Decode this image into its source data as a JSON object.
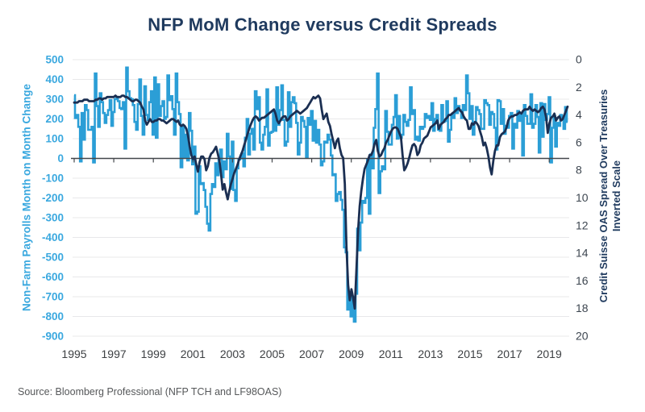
{
  "chart": {
    "title": "NFP MoM Change versus Credit Spreads",
    "source": "Source: Bloomberg Professional (NFP TCH and LF98OAS)"
  },
  "chart_data": {
    "type": "line",
    "title": "NFP MoM Change versus Credit Spreads",
    "source": "Source: Bloomberg Professional (NFP TCH and LF98OAS)",
    "grid": true,
    "legend": false,
    "x": {
      "start_year": 1995,
      "frequency": "monthly",
      "end_year": 2019,
      "tick_years": [
        1995,
        1997,
        1999,
        2001,
        2003,
        2005,
        2007,
        2009,
        2011,
        2013,
        2015,
        2017,
        2019
      ]
    },
    "left_axis": {
      "label": "Non-Farm Payrolls Month on Month Change",
      "ticks": [
        500,
        400,
        300,
        200,
        100,
        0,
        -100,
        -200,
        -300,
        -400,
        -500,
        -600,
        -700,
        -800,
        -900
      ],
      "range": [
        -900,
        500
      ],
      "color": "#3aa8df"
    },
    "right_axis": {
      "label_line1": "Credit Suisse OAS Spread Over Treasuries",
      "label_line2": "Inverted Scale",
      "ticks": [
        0,
        2,
        4,
        6,
        8,
        10,
        12,
        14,
        16,
        18,
        20
      ],
      "range": [
        0,
        20
      ],
      "inverted": true,
      "color": "#1f3a5e",
      "tick_color": "#3d4650"
    },
    "series": [
      {
        "name": "Non-Farm Payrolls Month on Month Change",
        "axis": "left",
        "color": "#2b9ed6",
        "style": "step",
        "values": [
          320,
          205,
          220,
          160,
          -15,
          230,
          95,
          270,
          245,
          145,
          145,
          160,
          -20,
          430,
          265,
          160,
          330,
          285,
          230,
          180,
          220,
          245,
          295,
          165,
          235,
          300,
          310,
          290,
          255,
          250,
          285,
          50,
          460,
          340,
          305,
          300,
          270,
          185,
          145,
          275,
          400,
          215,
          120,
          365,
          220,
          195,
          285,
          340,
          120,
          410,
          105,
          375,
          215,
          265,
          290,
          200,
          210,
          420,
          295,
          315,
          250,
          120,
          430,
          285,
          225,
          -45,
          165,
          5,
          120,
          -10,
          230,
          140,
          -30,
          60,
          -280,
          -270,
          -40,
          -130,
          -125,
          -160,
          -245,
          -330,
          -365,
          -180,
          -130,
          -145,
          -25,
          -85,
          -5,
          45,
          -95,
          -15,
          -55,
          125,
          10,
          -155,
          85,
          -160,
          -215,
          -50,
          -5,
          0,
          25,
          -40,
          105,
          200,
          20,
          125,
          150,
          45,
          340,
          250,
          310,
          80,
          45,
          120,
          160,
          350,
          65,
          130,
          135,
          240,
          140,
          360,
          170,
          245,
          370,
          195,
          65,
          85,
          335,
          160,
          285,
          310,
          280,
          180,
          20,
          80,
          210,
          190,
          160,
          5,
          205,
          170,
          240,
          90,
          190,
          80,
          145,
          70,
          -35,
          -15,
          85,
          80,
          120,
          95,
          15,
          -85,
          -80,
          -215,
          -180,
          -170,
          -210,
          -260,
          -450,
          -475,
          -765,
          -695,
          -800,
          -700,
          -826,
          -685,
          -355,
          -465,
          -325,
          -215,
          -225,
          -200,
          -5,
          -280,
          20,
          -50,
          155,
          250,
          430,
          -175,
          -65,
          -40,
          -55,
          240,
          135,
          70,
          70,
          170,
          210,
          320,
          100,
          215,
          105,
          120,
          220,
          185,
          165,
          195,
          360,
          225,
          245,
          95,
          110,
          90,
          160,
          150,
          160,
          225,
          205,
          215,
          195,
          280,
          140,
          200,
          220,
          145,
          140,
          270,
          185,
          190,
          290,
          85,
          145,
          220,
          205,
          305,
          230,
          265,
          245,
          205,
          270,
          245,
          420,
          330,
          200,
          265,
          120,
          185,
          260,
          245,
          225,
          150,
          150,
          295,
          280,
          270,
          170,
          235,
          225,
          155,
          45,
          295,
          290,
          175,
          250,
          125,
          165,
          155,
          215,
          230,
          50,
          175,
          155,
          240,
          190,
          220,
          15,
          270,
          215,
          175,
          175,
          325,
          155,
          175,
          270,
          210,
          30,
          280,
          110,
          275,
          195,
          225,
          310,
          -20,
          155,
          215,
          60,
          180,
          165,
          220,
          195,
          150,
          260,
          185
        ]
      },
      {
        "name": "Credit Suisse OAS Spread Over Treasuries (Inverted Scale)",
        "axis": "right",
        "color": "#1b2f52",
        "style": "line",
        "values": [
          3.1,
          3.1,
          3.1,
          3.0,
          3.0,
          3.0,
          2.9,
          2.9,
          2.9,
          3.0,
          3.0,
          3.0,
          3.0,
          2.9,
          2.9,
          2.8,
          2.8,
          2.9,
          2.8,
          2.8,
          2.7,
          2.7,
          2.7,
          2.7,
          2.7,
          2.6,
          2.7,
          2.7,
          2.7,
          2.6,
          2.6,
          2.7,
          2.7,
          2.8,
          2.9,
          3.0,
          3.0,
          2.9,
          2.9,
          3.0,
          3.1,
          3.4,
          3.6,
          4.4,
          4.7,
          4.5,
          4.3,
          4.5,
          4.5,
          4.4,
          4.4,
          4.3,
          4.3,
          4.4,
          4.4,
          4.5,
          4.6,
          4.5,
          4.4,
          4.3,
          4.3,
          4.4,
          4.5,
          4.4,
          4.7,
          4.8,
          4.7,
          4.8,
          5.0,
          5.5,
          6.3,
          6.9,
          7.2,
          7.0,
          7.6,
          8.1,
          7.4,
          7.0,
          7.0,
          7.2,
          8.0,
          7.7,
          7.1,
          6.8,
          6.7,
          6.5,
          6.3,
          6.8,
          7.3,
          8.3,
          9.4,
          9.0,
          9.6,
          10.1,
          9.5,
          9.0,
          8.6,
          8.2,
          7.9,
          7.6,
          7.2,
          6.9,
          6.6,
          6.2,
          5.8,
          5.4,
          5.0,
          4.7,
          4.4,
          4.2,
          4.1,
          4.2,
          4.4,
          4.3,
          4.2,
          4.2,
          4.1,
          4.0,
          3.9,
          3.8,
          3.7,
          3.6,
          3.9,
          4.4,
          4.6,
          4.4,
          4.2,
          4.1,
          4.1,
          4.4,
          4.3,
          4.1,
          4.0,
          3.9,
          3.8,
          3.7,
          3.8,
          3.9,
          3.8,
          3.7,
          3.6,
          3.5,
          3.3,
          3.1,
          2.9,
          2.7,
          2.8,
          2.7,
          2.6,
          2.8,
          3.6,
          4.3,
          4.1,
          3.9,
          4.5,
          4.8,
          5.4,
          5.9,
          6.4,
          5.9,
          5.7,
          6.4,
          6.9,
          7.1,
          9.0,
          13.5,
          16.3,
          17.4,
          16.6,
          17.2,
          18.0,
          15.3,
          12.4,
          10.6,
          9.5,
          8.6,
          7.9,
          7.6,
          7.3,
          6.9,
          6.9,
          6.6,
          6.1,
          5.8,
          6.6,
          7.0,
          6.9,
          6.6,
          6.4,
          6.0,
          5.8,
          5.5,
          5.2,
          5.0,
          4.9,
          4.9,
          5.0,
          5.3,
          5.6,
          6.9,
          8.0,
          7.8,
          7.5,
          7.1,
          6.6,
          6.2,
          6.1,
          6.3,
          6.9,
          6.7,
          6.2,
          6.0,
          5.7,
          5.6,
          5.5,
          5.2,
          4.9,
          4.8,
          4.7,
          4.6,
          4.4,
          5.0,
          4.7,
          4.6,
          4.5,
          4.3,
          4.2,
          4.0,
          4.0,
          3.9,
          3.8,
          3.7,
          3.6,
          3.5,
          3.7,
          3.8,
          4.1,
          4.3,
          4.4,
          5.0,
          5.0,
          4.6,
          4.7,
          4.5,
          4.6,
          4.8,
          5.2,
          5.6,
          6.2,
          6.0,
          6.4,
          7.0,
          7.8,
          8.3,
          7.3,
          6.6,
          6.2,
          6.2,
          5.6,
          5.4,
          5.3,
          5.2,
          4.9,
          4.4,
          4.2,
          4.1,
          4.1,
          4.0,
          4.0,
          3.9,
          3.8,
          3.9,
          3.7,
          3.6,
          3.6,
          3.6,
          3.4,
          3.6,
          3.7,
          3.6,
          3.7,
          3.8,
          3.7,
          3.5,
          3.4,
          3.6,
          4.2,
          5.3,
          4.6,
          4.2,
          4.1,
          3.9,
          4.4,
          4.2,
          4.1,
          4.4,
          4.3,
          4.0,
          3.7,
          3.4
        ]
      }
    ]
  }
}
